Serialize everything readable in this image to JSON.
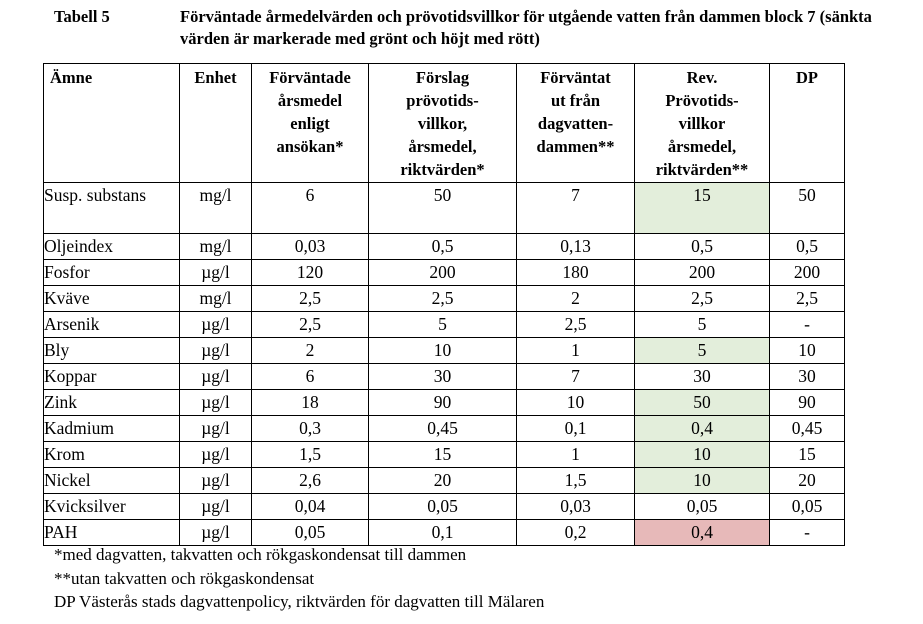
{
  "caption": {
    "label": "Tabell 5",
    "text": "Förväntade årmedelvärden och prövotidsvillkor för utgående vatten från dammen block 7 (sänkta värden är markerade med grönt och höjt med rött)"
  },
  "headers": [
    [
      "Ämne"
    ],
    [
      "Enhet"
    ],
    [
      "Förväntade",
      "årsmedel",
      "enligt",
      "ansökan*"
    ],
    [
      "Förslag",
      "prövotids-",
      "villkor,",
      "årsmedel,",
      "riktvärden*"
    ],
    [
      "Förväntat",
      "ut från",
      "dagvatten-",
      "dammen**"
    ],
    [
      "Rev.",
      "Prövotids-",
      "villkor",
      "årsmedel,",
      "riktvärden**"
    ],
    [
      "DP"
    ]
  ],
  "rows": [
    {
      "name": "Susp. substans",
      "unit": "mg/l",
      "v": [
        "6",
        "50",
        "7",
        "15",
        "50"
      ],
      "mark": "green"
    },
    {
      "name": "Oljeindex",
      "unit": "mg/l",
      "v": [
        "0,03",
        "0,5",
        "0,13",
        "0,5",
        "0,5"
      ],
      "mark": ""
    },
    {
      "name": "Fosfor",
      "unit": "µg/l",
      "v": [
        "120",
        "200",
        "180",
        "200",
        "200"
      ],
      "mark": ""
    },
    {
      "name": "Kväve",
      "unit": "mg/l",
      "v": [
        "2,5",
        "2,5",
        "2",
        "2,5",
        "2,5"
      ],
      "mark": ""
    },
    {
      "name": "Arsenik",
      "unit": "µg/l",
      "v": [
        "2,5",
        "5",
        "2,5",
        "5",
        "-"
      ],
      "mark": ""
    },
    {
      "name": "Bly",
      "unit": "µg/l",
      "v": [
        "2",
        "10",
        "1",
        "5",
        "10"
      ],
      "mark": "green"
    },
    {
      "name": "Koppar",
      "unit": "µg/l",
      "v": [
        "6",
        "30",
        "7",
        "30",
        "30"
      ],
      "mark": ""
    },
    {
      "name": "Zink",
      "unit": "µg/l",
      "v": [
        "18",
        "90",
        "10",
        "50",
        "90"
      ],
      "mark": "green"
    },
    {
      "name": "Kadmium",
      "unit": "µg/l",
      "v": [
        "0,3",
        "0,45",
        "0,1",
        "0,4",
        "0,45"
      ],
      "mark": "green"
    },
    {
      "name": "Krom",
      "unit": "µg/l",
      "v": [
        "1,5",
        "15",
        "1",
        "10",
        "15"
      ],
      "mark": "green"
    },
    {
      "name": "Nickel",
      "unit": "µg/l",
      "v": [
        "2,6",
        "20",
        "1,5",
        "10",
        "20"
      ],
      "mark": "green"
    },
    {
      "name": "Kvicksilver",
      "unit": "µg/l",
      "v": [
        "0,04",
        "0,05",
        "0,03",
        "0,05",
        "0,05"
      ],
      "mark": ""
    },
    {
      "name": "PAH",
      "unit": "µg/l",
      "v": [
        "0,05",
        "0,1",
        "0,2",
        "0,4",
        "-"
      ],
      "mark": "red"
    }
  ],
  "notes": [
    "*med dagvatten, takvatten och rökgaskondensat till dammen",
    "**utan takvatten och rökgaskondensat",
    "DP Västerås stads dagvattenpolicy, riktvärden för dagvatten till Mälaren"
  ],
  "colors": {
    "green": "#e3eedb",
    "red": "#e7b9b9"
  }
}
